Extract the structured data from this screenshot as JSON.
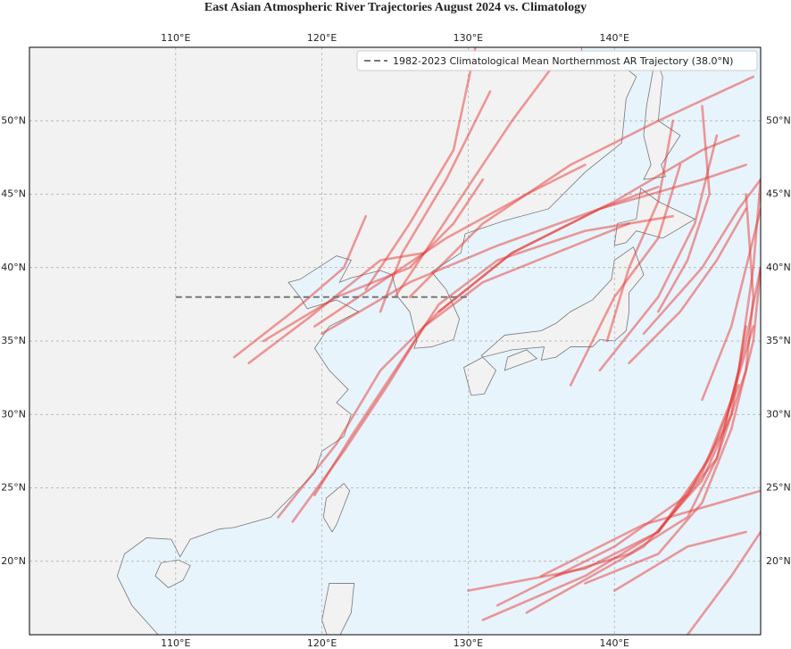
{
  "chart_data": {
    "type": "trajectory-map",
    "title": "East Asian Atmospheric River Trajectories August 2024 vs. Climatology",
    "xlim": [
      100,
      150
    ],
    "ylim": [
      15,
      55
    ],
    "xticks": [
      {
        "value": 110,
        "label": "110°E"
      },
      {
        "value": 120,
        "label": "120°E"
      },
      {
        "value": 130,
        "label": "130°E"
      },
      {
        "value": 140,
        "label": "140°E"
      }
    ],
    "yticks": [
      {
        "value": 20,
        "label": "20°N"
      },
      {
        "value": 25,
        "label": "25°N"
      },
      {
        "value": 30,
        "label": "30°N"
      },
      {
        "value": 35,
        "label": "35°N"
      },
      {
        "value": 40,
        "label": "40°N"
      },
      {
        "value": 45,
        "label": "45°N"
      },
      {
        "value": 50,
        "label": "50°N"
      }
    ],
    "grid": true,
    "legend": "upper right",
    "climatology": {
      "name": "1982-2023 Climatological Mean Northernmost AR Trajectory (38.0°N)",
      "color": "#777777",
      "lon": [
        110,
        130
      ],
      "lat": [
        38,
        38
      ]
    },
    "trajectories": {
      "color": "#e53935",
      "tracks": [
        {
          "lon": [
            114,
            118,
            121.5,
            123
          ],
          "lat": [
            33.9,
            37,
            40,
            43.5
          ]
        },
        {
          "lon": [
            115,
            119,
            124,
            127
          ],
          "lat": [
            33.5,
            36.5,
            40.5,
            41
          ]
        },
        {
          "lon": [
            116,
            121,
            126,
            129,
            131
          ],
          "lat": [
            35,
            38,
            40,
            43,
            46
          ]
        },
        {
          "lon": [
            119.5,
            124,
            128.5,
            134,
            138
          ],
          "lat": [
            36,
            39,
            42,
            45,
            47
          ]
        },
        {
          "lon": [
            117,
            121,
            124,
            128,
            133,
            139,
            143
          ],
          "lat": [
            23,
            28,
            33,
            37,
            41,
            44,
            45.5
          ]
        },
        {
          "lon": [
            118,
            121.5,
            124.5,
            127,
            131,
            136,
            141
          ],
          "lat": [
            22.7,
            27.5,
            32,
            36,
            39,
            41,
            43
          ]
        },
        {
          "lon": [
            119.5,
            122,
            125,
            128,
            132,
            138,
            144
          ],
          "lat": [
            24.5,
            28.5,
            33,
            37.5,
            40.5,
            42.5,
            43.5
          ]
        },
        {
          "lon": [
            124,
            125.5,
            128.5,
            131.5
          ],
          "lat": [
            37,
            41,
            46,
            52
          ]
        },
        {
          "lon": [
            123,
            126,
            129,
            130.5
          ],
          "lat": [
            38.5,
            43,
            48,
            55
          ]
        },
        {
          "lon": [
            125,
            129,
            133,
            136
          ],
          "lat": [
            38,
            44,
            50,
            54
          ]
        },
        {
          "lon": [
            120,
            126,
            132,
            139,
            146,
            149
          ],
          "lat": [
            35.5,
            39,
            41.5,
            44,
            46,
            47
          ]
        },
        {
          "lon": [
            126,
            131,
            137,
            143,
            149.5
          ],
          "lat": [
            38,
            43,
            47,
            50,
            53
          ]
        },
        {
          "lon": [
            128,
            133,
            140,
            146,
            148.5
          ],
          "lat": [
            37,
            41,
            44.5,
            48,
            49
          ]
        },
        {
          "lon": [
            143,
            147,
            149,
            149.5,
            149
          ],
          "lat": [
            22,
            27,
            33,
            38,
            45
          ]
        },
        {
          "lon": [
            138,
            143,
            146,
            148,
            149.5,
            150
          ],
          "lat": [
            18.5,
            20.5,
            24,
            29,
            35,
            40
          ]
        },
        {
          "lon": [
            136,
            141,
            145,
            147,
            148.5,
            149.5,
            150
          ],
          "lat": [
            19,
            20.5,
            23,
            27,
            33,
            40,
            46
          ]
        },
        {
          "lon": [
            130,
            138,
            143,
            146,
            148,
            149.5
          ],
          "lat": [
            18,
            19.5,
            22,
            26,
            31,
            36
          ]
        },
        {
          "lon": [
            131,
            138,
            143,
            146.5,
            148.5
          ],
          "lat": [
            16,
            19,
            22,
            27,
            32
          ]
        },
        {
          "lon": [
            132,
            140,
            145,
            147.5,
            149,
            150
          ],
          "lat": [
            17,
            21,
            24.5,
            29,
            35,
            40
          ]
        },
        {
          "lon": [
            134,
            142,
            146,
            148,
            149
          ],
          "lat": [
            16.5,
            21,
            25.5,
            30,
            36
          ]
        },
        {
          "lon": [
            135,
            142,
            150
          ],
          "lat": [
            19,
            22.5,
            24.8
          ]
        },
        {
          "lon": [
            140,
            145,
            149
          ],
          "lat": [
            18,
            21,
            22
          ]
        },
        {
          "lon": [
            137,
            140,
            143,
            144.5
          ],
          "lat": [
            32,
            38,
            42,
            47
          ]
        },
        {
          "lon": [
            139,
            143,
            145.5,
            147
          ],
          "lat": [
            33,
            38,
            43,
            49
          ]
        },
        {
          "lon": [
            141,
            144.5,
            147,
            149
          ],
          "lat": [
            33.5,
            37,
            40.5,
            44
          ]
        },
        {
          "lon": [
            143,
            145,
            146.5,
            146
          ],
          "lat": [
            37,
            40.5,
            45,
            51
          ]
        },
        {
          "lon": [
            139.5,
            141,
            143,
            144
          ],
          "lat": [
            35,
            40,
            44.5,
            50
          ]
        },
        {
          "lon": [
            142,
            146,
            148.5,
            150
          ],
          "lat": [
            35.5,
            40,
            44,
            46
          ]
        },
        {
          "lon": [
            146,
            148,
            149,
            150
          ],
          "lat": [
            31,
            36,
            40,
            44
          ]
        },
        {
          "lon": [
            145,
            148,
            150
          ],
          "lat": [
            15,
            19,
            22
          ]
        }
      ]
    }
  }
}
